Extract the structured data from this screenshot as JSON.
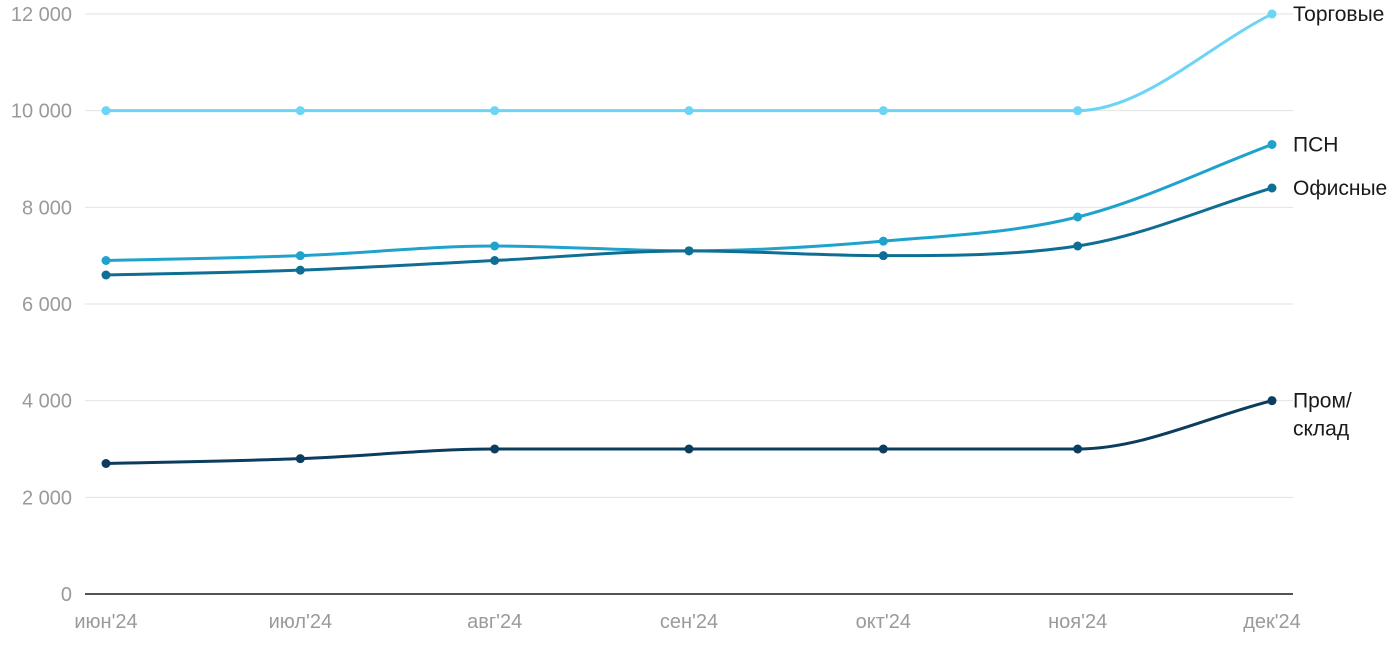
{
  "chart_data": {
    "type": "line",
    "title": "",
    "xlabel": "",
    "ylabel": "",
    "categories": [
      "июн'24",
      "июл'24",
      "авг'24",
      "сен'24",
      "окт'24",
      "ноя'24",
      "дек'24"
    ],
    "ylim": [
      0,
      12000
    ],
    "yticks": [
      0,
      2000,
      4000,
      6000,
      8000,
      10000,
      12000
    ],
    "ytick_labels": [
      "0",
      "2 000",
      "4 000",
      "6 000",
      "8 000",
      "10 000",
      "12 000"
    ],
    "grid": true,
    "legend": "labels at line ends",
    "series": [
      {
        "name": "Торговые",
        "label_lines": [
          "Торговые"
        ],
        "color": "#6cd4f5",
        "values": [
          10000,
          10000,
          10000,
          10000,
          10000,
          10000,
          12000
        ]
      },
      {
        "name": "ПСН",
        "label_lines": [
          "ПСН"
        ],
        "color": "#1fa3cc",
        "values": [
          6900,
          7000,
          7200,
          7100,
          7300,
          7800,
          9300
        ]
      },
      {
        "name": "Офисные",
        "label_lines": [
          "Офисные"
        ],
        "color": "#0e6e94",
        "values": [
          6600,
          6700,
          6900,
          7100,
          7000,
          7200,
          8400
        ]
      },
      {
        "name": "Пром/склад",
        "label_lines": [
          "Пром/",
          "склад"
        ],
        "color": "#0b3d5e",
        "values": [
          2700,
          2800,
          3000,
          3000,
          3000,
          3000,
          4000
        ]
      }
    ]
  }
}
